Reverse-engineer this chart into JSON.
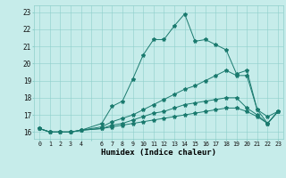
{
  "xlabel": "Humidex (Indice chaleur)",
  "bg_color": "#c6ecea",
  "grid_color": "#8ecfca",
  "line_color": "#1a7a6e",
  "xlim": [
    -0.5,
    23.5
  ],
  "ylim": [
    15.6,
    23.4
  ],
  "yticks": [
    16,
    17,
    18,
    19,
    20,
    21,
    22,
    23
  ],
  "series": [
    {
      "x": [
        0,
        1,
        2,
        3,
        4,
        6,
        7,
        8,
        9,
        10,
        11,
        12,
        13,
        14,
        15,
        16,
        17,
        18,
        19,
        20,
        21,
        22,
        23
      ],
      "y": [
        16.2,
        16.0,
        16.0,
        16.0,
        16.1,
        16.5,
        17.5,
        17.8,
        19.1,
        20.5,
        21.4,
        21.4,
        22.2,
        22.9,
        21.3,
        21.4,
        21.1,
        20.8,
        19.4,
        19.6,
        17.3,
        16.9,
        17.2
      ]
    },
    {
      "x": [
        0,
        1,
        2,
        3,
        4,
        6,
        7,
        8,
        9,
        10,
        11,
        12,
        13,
        14,
        15,
        16,
        17,
        18,
        19,
        20,
        21,
        22,
        23
      ],
      "y": [
        16.2,
        16.0,
        16.0,
        16.0,
        16.1,
        16.3,
        16.6,
        16.8,
        17.0,
        17.3,
        17.6,
        17.9,
        18.2,
        18.5,
        18.7,
        19.0,
        19.3,
        19.6,
        19.3,
        19.3,
        17.3,
        16.5,
        17.2
      ]
    },
    {
      "x": [
        0,
        1,
        2,
        3,
        4,
        6,
        7,
        8,
        9,
        10,
        11,
        12,
        13,
        14,
        15,
        16,
        17,
        18,
        19,
        20,
        21,
        22,
        23
      ],
      "y": [
        16.2,
        16.0,
        16.0,
        16.0,
        16.1,
        16.2,
        16.4,
        16.5,
        16.7,
        16.9,
        17.1,
        17.2,
        17.4,
        17.6,
        17.7,
        17.8,
        17.9,
        18.0,
        18.0,
        17.4,
        17.0,
        16.5,
        17.2
      ]
    },
    {
      "x": [
        0,
        1,
        2,
        3,
        4,
        6,
        7,
        8,
        9,
        10,
        11,
        12,
        13,
        14,
        15,
        16,
        17,
        18,
        19,
        20,
        21,
        22,
        23
      ],
      "y": [
        16.2,
        16.0,
        16.0,
        16.0,
        16.1,
        16.2,
        16.3,
        16.4,
        16.5,
        16.6,
        16.7,
        16.8,
        16.9,
        17.0,
        17.1,
        17.2,
        17.3,
        17.4,
        17.4,
        17.2,
        16.9,
        16.5,
        17.2
      ]
    }
  ]
}
